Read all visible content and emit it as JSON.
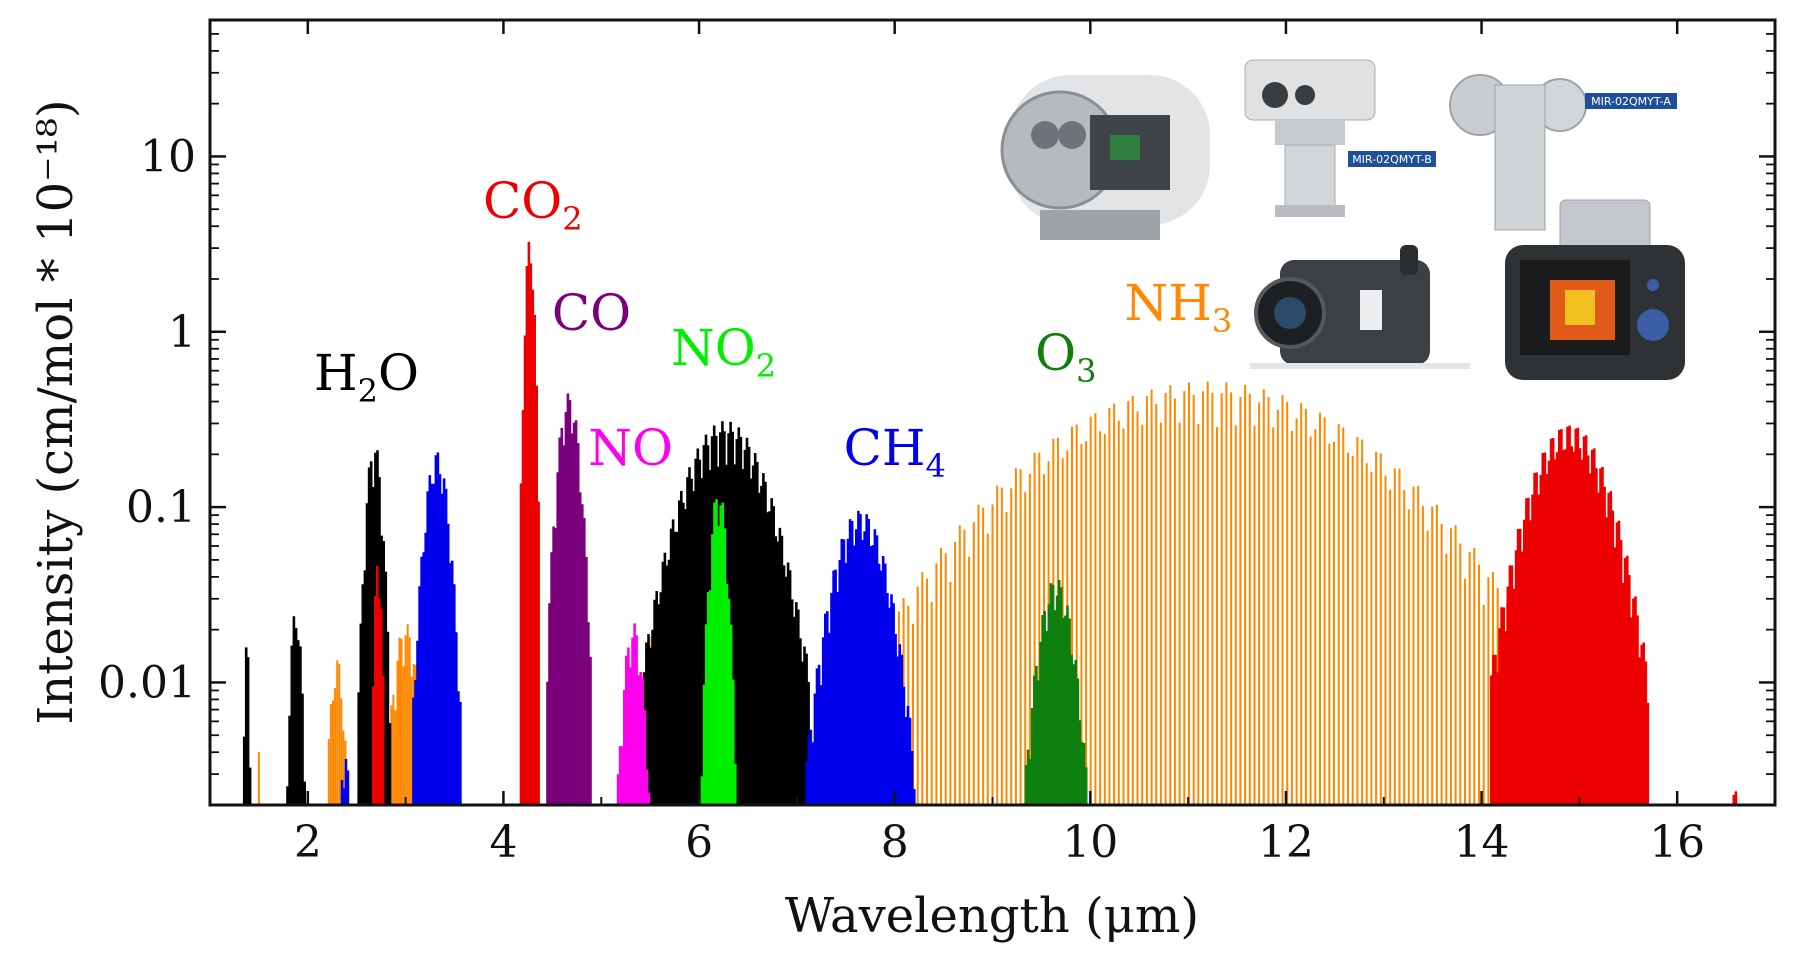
{
  "chart_data": {
    "type": "bar",
    "xlabel": "Wavelength (μm)",
    "ylabel": "Intensity (cm/mol * 10⁻¹⁸)",
    "xlim": [
      1.0,
      17.0
    ],
    "ylim": [
      0.002,
      60
    ],
    "yscale": "log",
    "x_ticks": [
      "2",
      "4",
      "6",
      "8",
      "10",
      "12",
      "14",
      "16"
    ],
    "y_ticks": [
      "0.01",
      "0.1",
      "1",
      "10"
    ],
    "series": [
      {
        "name": "H2O",
        "label_main": "H",
        "label_sub": "2",
        "label_tail": "O",
        "color": "#000000",
        "bands": [
          {
            "center": 1.38,
            "width": 0.1,
            "peak": 0.018
          },
          {
            "center": 1.88,
            "width": 0.22,
            "peak": 0.028
          },
          {
            "center": 2.68,
            "width": 0.32,
            "peak": 0.24
          },
          {
            "center": 6.27,
            "width": 1.7,
            "peak": 0.31
          }
        ]
      },
      {
        "name": "CO2",
        "label_main": "CO",
        "label_sub": "2",
        "label_tail": "",
        "color": "#ee0000",
        "bands": [
          {
            "center": 2.72,
            "width": 0.14,
            "peak": 0.056
          },
          {
            "center": 4.27,
            "width": 0.18,
            "peak": 3.5
          },
          {
            "center": 14.9,
            "width": 1.6,
            "peak": 0.3
          },
          {
            "center": 16.6,
            "width": 0.3,
            "peak": 0.0025
          }
        ]
      },
      {
        "name": "CO",
        "label_main": "CO",
        "label_sub": "",
        "label_tail": "",
        "color": "#7b007b",
        "bands": [
          {
            "center": 4.67,
            "width": 0.44,
            "peak": 0.45
          }
        ]
      },
      {
        "name": "NO",
        "label_main": "NO",
        "label_sub": "",
        "label_tail": "",
        "color": "#ff00ee",
        "bands": [
          {
            "center": 5.33,
            "width": 0.4,
            "peak": 0.022
          }
        ]
      },
      {
        "name": "NO2",
        "label_main": "NO",
        "label_sub": "2",
        "label_tail": "",
        "color": "#00ee00",
        "bands": [
          {
            "center": 6.2,
            "width": 0.34,
            "peak": 0.13
          }
        ]
      },
      {
        "name": "CH4",
        "label_main": "CH",
        "label_sub": "4",
        "label_tail": "",
        "color": "#0000ee",
        "bands": [
          {
            "center": 2.38,
            "width": 0.18,
            "peak": 0.0045
          },
          {
            "center": 3.32,
            "width": 0.48,
            "peak": 0.21
          },
          {
            "center": 7.65,
            "width": 1.1,
            "peak": 0.097
          }
        ]
      },
      {
        "name": "O3",
        "label_main": "O",
        "label_sub": "3",
        "label_tail": "",
        "color": "#0d800d",
        "bands": [
          {
            "center": 9.65,
            "width": 0.7,
            "peak": 0.04
          }
        ]
      },
      {
        "name": "NH3",
        "label_main": "NH",
        "label_sub": "3",
        "label_tail": "",
        "color": "#ff8800",
        "bands": [
          {
            "center": 1.5,
            "width": 0.08,
            "peak": 0.004
          },
          {
            "center": 2.3,
            "width": 0.3,
            "peak": 0.014
          },
          {
            "center": 3.0,
            "width": 0.5,
            "peak": 0.022
          },
          {
            "center": 5.9,
            "width": 1.4,
            "peak": 0.05
          },
          {
            "center": 11.2,
            "width": 6.6,
            "peak": 0.52
          }
        ]
      }
    ]
  },
  "devices": [
    {
      "name": "explosion-proof-thermal-camera"
    },
    {
      "name": "pan-tilt-gas-imager-b",
      "tag": "MIR-02QMYT-B"
    },
    {
      "name": "explosion-proof-gas-imager-a",
      "tag": "MIR-02QMYT-A"
    },
    {
      "name": "handheld-gas-imaging-camera"
    },
    {
      "name": "handheld-infrared-camera"
    }
  ]
}
